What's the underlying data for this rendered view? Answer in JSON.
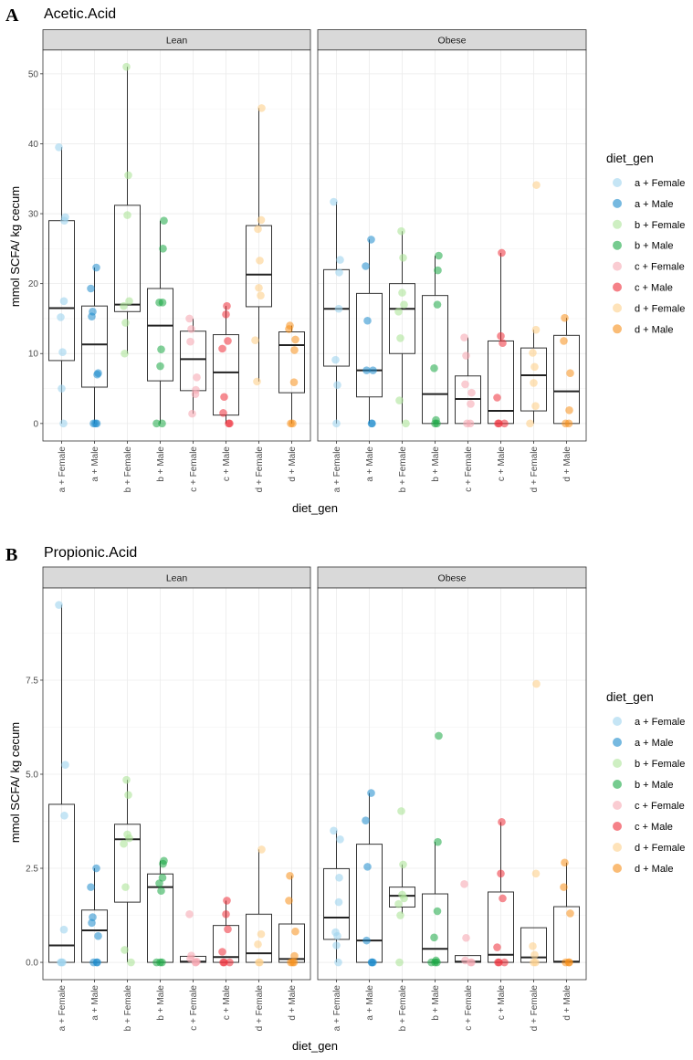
{
  "colors": {
    "a + Female": "#9fd3ef",
    "a + Male": "#1b8bcc",
    "b + Female": "#aee59a",
    "b + Male": "#1aa844",
    "c + Female": "#f6aab4",
    "c + Male": "#ef2d38",
    "d + Female": "#fdd08c",
    "d + Male": "#f7901a"
  },
  "chart_data": [
    {
      "type": "box",
      "label": "A",
      "title": "Acetic.Acid",
      "xlabel": "diet_gen",
      "ylabel": "mmol SCFA/ kg cecum",
      "ylim": [
        -2.5,
        53.4
      ],
      "yticks": [
        0,
        10,
        20,
        30,
        40,
        50
      ],
      "ytick_labels": [
        "0",
        "10",
        "20",
        "30",
        "40",
        "50"
      ],
      "grid": true,
      "legend": {
        "title": "diet_gen",
        "placement": "right",
        "entries": [
          "a + Female",
          "a + Male",
          "b + Female",
          "b + Male",
          "c + Female",
          "c + Male",
          "d + Female",
          "d + Male"
        ]
      },
      "facets": [
        {
          "name": "Lean",
          "groups": [
            {
              "category": "a + Female",
              "whisker_low": 0,
              "q1": 9,
              "median": 16.5,
              "q3": 29,
              "whisker_high": 39.5,
              "points": [
                39.5,
                29.5,
                29,
                17.5,
                15.2,
                10.2,
                5,
                0
              ]
            },
            {
              "category": "a + Male",
              "whisker_low": 0,
              "q1": 5.2,
              "median": 11.3,
              "q3": 16.8,
              "whisker_high": 22.3,
              "points": [
                22.3,
                19.3,
                16,
                15.3,
                7.2,
                7,
                0,
                0,
                0
              ]
            },
            {
              "category": "b + Female",
              "whisker_low": 10,
              "q1": 16,
              "median": 17,
              "q3": 31.2,
              "whisker_high": 51,
              "points": [
                51,
                35.5,
                29.8,
                17.5,
                16.8,
                14.4,
                10
              ]
            },
            {
              "category": "b + Male",
              "whisker_low": 0,
              "q1": 6.1,
              "median": 14,
              "q3": 19.3,
              "whisker_high": 29,
              "points": [
                29,
                25,
                17.3,
                17.3,
                10.6,
                8.2,
                0,
                0
              ]
            },
            {
              "category": "c + Female",
              "whisker_low": 1.4,
              "q1": 4.7,
              "median": 9.2,
              "q3": 13.2,
              "whisker_high": 15,
              "points": [
                15,
                13.5,
                11.7,
                6.6,
                4.8,
                4.2,
                1.4
              ]
            },
            {
              "category": "c + Male",
              "whisker_low": 0,
              "q1": 1.2,
              "median": 7.3,
              "q3": 12.7,
              "whisker_high": 16.8,
              "points": [
                16.8,
                15.6,
                11.8,
                10.7,
                3.8,
                1.5,
                0,
                0
              ]
            },
            {
              "category": "d + Female",
              "whisker_low": 6,
              "q1": 16.7,
              "median": 21.3,
              "q3": 28.3,
              "whisker_high": 45.1,
              "points": [
                45.1,
                29.1,
                27.8,
                23.3,
                19.4,
                18.3,
                11.9,
                6
              ]
            },
            {
              "category": "d + Male",
              "whisker_low": 0,
              "q1": 4.4,
              "median": 11.2,
              "q3": 13.1,
              "whisker_high": 14,
              "points": [
                14,
                13.5,
                12,
                10.5,
                5.9,
                0,
                0
              ]
            }
          ]
        },
        {
          "name": "Obese",
          "groups": [
            {
              "category": "a + Female",
              "whisker_low": 0,
              "q1": 8.2,
              "median": 16.4,
              "q3": 22,
              "whisker_high": 31.7,
              "points": [
                31.7,
                23.4,
                21.6,
                16.4,
                9.1,
                5.5,
                0
              ]
            },
            {
              "category": "a + Male",
              "whisker_low": 0,
              "q1": 3.8,
              "median": 7.6,
              "q3": 18.6,
              "whisker_high": 26.3,
              "points": [
                26.3,
                22.5,
                14.7,
                7.6,
                7.6,
                0,
                0
              ]
            },
            {
              "category": "b + Female",
              "whisker_low": 0,
              "q1": 10,
              "median": 16.4,
              "q3": 20,
              "whisker_high": 27.5,
              "points": [
                27.5,
                23.7,
                18.7,
                17,
                16,
                12.2,
                3.3,
                0
              ]
            },
            {
              "category": "b + Male",
              "whisker_low": 0,
              "q1": 0,
              "median": 4.2,
              "q3": 18.3,
              "whisker_high": 24,
              "points": [
                24,
                21.9,
                17,
                7.9,
                0.5,
                0,
                0
              ]
            },
            {
              "category": "c + Female",
              "whisker_low": 0,
              "q1": 0,
              "median": 3.5,
              "q3": 6.8,
              "whisker_high": 12.3,
              "points": [
                12.3,
                9.7,
                5.6,
                4.4,
                2.8,
                0,
                0
              ]
            },
            {
              "category": "c + Male",
              "whisker_low": 0,
              "q1": 0,
              "median": 1.8,
              "q3": 11.8,
              "whisker_high": 24.4,
              "points": [
                24.4,
                12.5,
                11.5,
                3.7,
                0,
                0,
                0
              ]
            },
            {
              "category": "d + Female",
              "whisker_low": 0,
              "q1": 1.8,
              "median": 6.9,
              "q3": 10.8,
              "whisker_high": 13.4,
              "points": [
                34.1,
                13.4,
                10.1,
                8.1,
                5.8,
                2.5,
                0
              ]
            },
            {
              "category": "d + Male",
              "whisker_low": 0,
              "q1": 0,
              "median": 4.6,
              "q3": 12.6,
              "whisker_high": 15.1,
              "points": [
                15.1,
                11.8,
                7.2,
                1.9,
                0,
                0
              ]
            }
          ]
        }
      ]
    },
    {
      "type": "box",
      "label": "B",
      "title": "Propionic.Acid",
      "xlabel": "diet_gen",
      "ylabel": "mmol SCFA/ kg cecum",
      "ylim": [
        -0.46,
        9.95
      ],
      "yticks": [
        0,
        2.5,
        5,
        7.5
      ],
      "ytick_labels": [
        "0.0",
        "2.5",
        "5.0",
        "7.5"
      ],
      "grid": true,
      "legend": {
        "title": "diet_gen",
        "placement": "right",
        "entries": [
          "a + Female",
          "a + Male",
          "b + Female",
          "b + Male",
          "c + Female",
          "c + Male",
          "d + Female",
          "d + Male"
        ]
      },
      "facets": [
        {
          "name": "Lean",
          "groups": [
            {
              "category": "a + Female",
              "whisker_low": 0,
              "q1": 0,
              "median": 0.45,
              "q3": 4.2,
              "whisker_high": 9.5,
              "points": [
                9.5,
                5.25,
                3.9,
                0.87,
                0,
                0,
                0
              ]
            },
            {
              "category": "a + Male",
              "whisker_low": 0,
              "q1": 0,
              "median": 0.85,
              "q3": 1.39,
              "whisker_high": 2.5,
              "points": [
                2.5,
                2.0,
                1.2,
                1.05,
                0.7,
                0,
                0,
                0
              ]
            },
            {
              "category": "b + Female",
              "whisker_low": 0,
              "q1": 1.6,
              "median": 3.27,
              "q3": 3.67,
              "whisker_high": 4.85,
              "points": [
                4.85,
                4.45,
                3.4,
                3.3,
                3.15,
                2.0,
                0.33,
                0
              ]
            },
            {
              "category": "b + Male",
              "whisker_low": 0,
              "q1": 0,
              "median": 2.0,
              "q3": 2.35,
              "whisker_high": 2.7,
              "points": [
                2.7,
                2.62,
                2.25,
                2.1,
                1.9,
                0,
                0,
                0
              ]
            },
            {
              "category": "c + Female",
              "whisker_low": 0,
              "q1": 0,
              "median": 0.02,
              "q3": 0.16,
              "whisker_high": 0.18,
              "points": [
                1.28,
                0.18,
                0.1,
                0.02,
                0,
                0
              ]
            },
            {
              "category": "c + Male",
              "whisker_low": 0,
              "q1": 0,
              "median": 0.14,
              "q3": 0.98,
              "whisker_high": 1.64,
              "points": [
                1.64,
                1.28,
                0.88,
                0.28,
                0,
                0,
                0
              ]
            },
            {
              "category": "d + Female",
              "whisker_low": 0,
              "q1": 0,
              "median": 0.24,
              "q3": 1.28,
              "whisker_high": 3.0,
              "points": [
                3.0,
                0.75,
                0.48,
                0,
                0
              ]
            },
            {
              "category": "d + Male",
              "whisker_low": 0,
              "q1": 0,
              "median": 0.09,
              "q3": 1.02,
              "whisker_high": 2.3,
              "points": [
                2.3,
                1.64,
                0.82,
                0.17,
                0,
                0,
                0
              ]
            }
          ]
        },
        {
          "name": "Obese",
          "groups": [
            {
              "category": "a + Female",
              "whisker_low": 0,
              "q1": 0.61,
              "median": 1.19,
              "q3": 2.49,
              "whisker_high": 3.5,
              "points": [
                3.5,
                3.27,
                2.25,
                1.6,
                0.8,
                0.7,
                0.45,
                0
              ]
            },
            {
              "category": "a + Male",
              "whisker_low": 0,
              "q1": 0,
              "median": 0.58,
              "q3": 3.14,
              "whisker_high": 4.5,
              "points": [
                4.5,
                3.77,
                2.54,
                0.58,
                0,
                0,
                0
              ]
            },
            {
              "category": "b + Female",
              "whisker_low": 1.3,
              "q1": 1.47,
              "median": 1.77,
              "q3": 2.0,
              "whisker_high": 2.6,
              "points": [
                4.02,
                2.6,
                1.8,
                1.7,
                1.55,
                1.25,
                0
              ]
            },
            {
              "category": "b + Male",
              "whisker_low": 0,
              "q1": 0,
              "median": 0.36,
              "q3": 1.82,
              "whisker_high": 3.2,
              "points": [
                6.02,
                3.2,
                1.36,
                0.66,
                0.05,
                0,
                0,
                0
              ]
            },
            {
              "category": "c + Female",
              "whisker_low": 0,
              "q1": 0,
              "median": 0.02,
              "q3": 0.18,
              "whisker_high": 0.18,
              "points": [
                2.08,
                0.65,
                0.05,
                0,
                0
              ]
            },
            {
              "category": "c + Male",
              "whisker_low": 0,
              "q1": 0,
              "median": 0.2,
              "q3": 1.87,
              "whisker_high": 3.73,
              "points": [
                3.73,
                2.36,
                1.7,
                0.4,
                0,
                0,
                0
              ]
            },
            {
              "category": "d + Female",
              "whisker_low": 0,
              "q1": 0,
              "median": 0.13,
              "q3": 0.92,
              "whisker_high": 0.92,
              "points": [
                7.4,
                2.36,
                0.43,
                0.2,
                0,
                0
              ]
            },
            {
              "category": "d + Male",
              "whisker_low": 0,
              "q1": 0,
              "median": 0.02,
              "q3": 1.48,
              "whisker_high": 2.65,
              "points": [
                2.65,
                2.0,
                1.3,
                0,
                0,
                0
              ]
            }
          ]
        }
      ]
    }
  ]
}
